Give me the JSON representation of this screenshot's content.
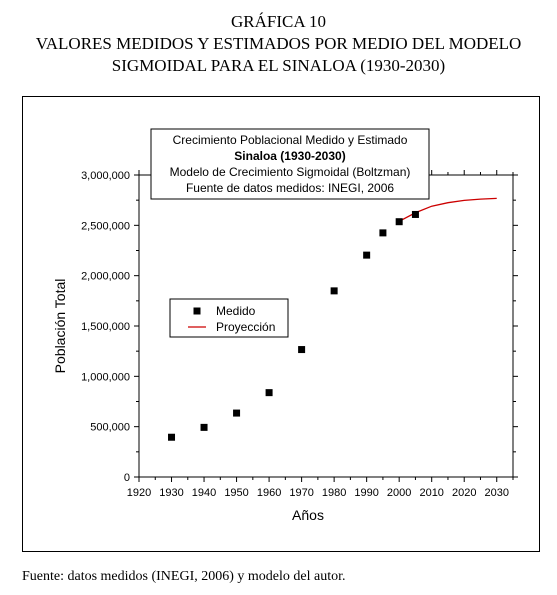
{
  "figure": {
    "number": "GRÁFICA 10",
    "title_line1": "VALORES MEDIDOS Y ESTIMADOS POR MEDIO DEL MODELO",
    "title_line2": "SIGMOIDAL PARA EL   SINALOA (1930-2030)",
    "footnote": "Fuente: datos medidos (INEGI, 2006) y modelo del autor."
  },
  "chart_data": {
    "type": "scatter",
    "title_lines": [
      "Crecimiento Poblacional Medido y Estimado",
      "Sinaloa (1930-2030)",
      "Modelo de Crecimiento Sigmoidal (Boltzman)",
      "Fuente de datos medidos: INEGI, 2006"
    ],
    "xlabel": "Años",
    "ylabel": "Población Total",
    "xlim": [
      1920,
      2035
    ],
    "ylim": [
      0,
      3000000
    ],
    "x_ticks": [
      1920,
      1930,
      1940,
      1950,
      1960,
      1970,
      1980,
      1990,
      2000,
      2010,
      2020,
      2030
    ],
    "y_ticks": [
      0,
      500000,
      1000000,
      1500000,
      2000000,
      2500000,
      3000000
    ],
    "y_tick_labels": [
      "0",
      "500,000",
      "1,000,000",
      "1,500,000",
      "2,000,000",
      "2,500,000",
      "3,000,000"
    ],
    "grid": false,
    "legend_position": "center-left",
    "series": [
      {
        "name": "Medido",
        "style": "square-marker",
        "color": "#000000",
        "x": [
          1930,
          1940,
          1950,
          1960,
          1970,
          1980,
          1990,
          1995,
          2000,
          2005
        ],
        "y": [
          395000,
          493000,
          635000,
          838000,
          1266000,
          1849000,
          2204000,
          2425000,
          2536000,
          2608000
        ]
      },
      {
        "name": "Proyección",
        "style": "line",
        "color": "#cc0000",
        "x": [
          2000,
          2005,
          2010,
          2015,
          2020,
          2025,
          2030
        ],
        "y": [
          2540000,
          2625000,
          2690000,
          2725000,
          2748000,
          2760000,
          2768000
        ]
      }
    ]
  }
}
